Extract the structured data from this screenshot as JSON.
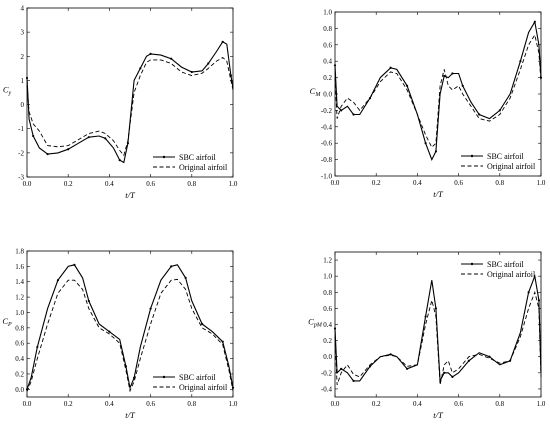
{
  "chart_data": [
    {
      "type": "line",
      "ylabel": "C_y",
      "ylabel_main": "C",
      "ylabel_sub": "y",
      "xlabel": "t/T",
      "xlim": [
        0,
        1
      ],
      "ylim": [
        -3,
        4
      ],
      "xticks": [
        0.0,
        0.2,
        0.4,
        0.6,
        0.8,
        1.0
      ],
      "yticks": [
        -3,
        -2,
        -1,
        0,
        1,
        2,
        3,
        4
      ],
      "tick_decimals_x": 1,
      "tick_decimals_y": 0,
      "legend_position": "bottom-right",
      "series": [
        {
          "name": "SBC airfoil",
          "style": "solid-marker",
          "x": [
            0,
            0.01,
            0.03,
            0.06,
            0.1,
            0.15,
            0.2,
            0.25,
            0.3,
            0.35,
            0.38,
            0.42,
            0.45,
            0.47,
            0.49,
            0.52,
            0.55,
            0.58,
            0.6,
            0.65,
            0.7,
            0.75,
            0.8,
            0.85,
            0.88,
            0.92,
            0.95,
            0.97,
            0.99,
            1.0
          ],
          "y": [
            1.1,
            -0.6,
            -1.3,
            -1.8,
            -2.05,
            -2.0,
            -1.85,
            -1.6,
            -1.35,
            -1.3,
            -1.4,
            -1.8,
            -2.3,
            -2.4,
            -1.6,
            1.0,
            1.5,
            2.0,
            2.1,
            2.05,
            1.9,
            1.55,
            1.35,
            1.4,
            1.7,
            2.2,
            2.6,
            2.5,
            1.2,
            0.7
          ]
        },
        {
          "name": "Original airfoil",
          "style": "dashed",
          "x": [
            0,
            0.01,
            0.03,
            0.06,
            0.1,
            0.15,
            0.2,
            0.25,
            0.3,
            0.35,
            0.38,
            0.42,
            0.45,
            0.47,
            0.49,
            0.52,
            0.55,
            0.58,
            0.6,
            0.65,
            0.7,
            0.75,
            0.8,
            0.85,
            0.88,
            0.92,
            0.95,
            0.97,
            0.99,
            1.0
          ],
          "y": [
            0.8,
            -0.3,
            -0.8,
            -1.1,
            -1.7,
            -1.75,
            -1.7,
            -1.45,
            -1.2,
            -1.1,
            -1.2,
            -1.5,
            -1.9,
            -2.1,
            -1.5,
            0.5,
            1.2,
            1.75,
            1.85,
            1.85,
            1.7,
            1.35,
            1.2,
            1.3,
            1.5,
            1.8,
            1.95,
            1.8,
            1.0,
            0.6
          ]
        }
      ]
    },
    {
      "type": "line",
      "ylabel": "C_M",
      "ylabel_main": "C",
      "ylabel_sub": "M",
      "xlabel": "t/T",
      "xlim": [
        0,
        1
      ],
      "ylim": [
        -1.0,
        1.0
      ],
      "xticks": [
        0.0,
        0.2,
        0.4,
        0.6,
        0.8,
        1.0
      ],
      "yticks": [
        -1.0,
        -0.8,
        -0.6,
        -0.4,
        -0.2,
        0.0,
        0.2,
        0.4,
        0.6,
        0.8,
        1.0
      ],
      "tick_decimals_x": 1,
      "tick_decimals_y": 1,
      "legend_position": "bottom-right",
      "series": [
        {
          "name": "SBC airfoil",
          "style": "solid-marker",
          "x": [
            0,
            0.01,
            0.03,
            0.06,
            0.09,
            0.12,
            0.17,
            0.22,
            0.27,
            0.3,
            0.35,
            0.4,
            0.44,
            0.47,
            0.49,
            0.51,
            0.53,
            0.55,
            0.57,
            0.6,
            0.62,
            0.66,
            0.7,
            0.75,
            0.8,
            0.85,
            0.9,
            0.94,
            0.97,
            0.99,
            1.0
          ],
          "y": [
            0.35,
            -0.15,
            -0.2,
            -0.15,
            -0.25,
            -0.25,
            -0.05,
            0.2,
            0.32,
            0.3,
            0.1,
            -0.25,
            -0.6,
            -0.8,
            -0.7,
            0.0,
            0.22,
            0.2,
            0.25,
            0.25,
            0.1,
            -0.1,
            -0.25,
            -0.3,
            -0.2,
            0.0,
            0.4,
            0.75,
            0.88,
            0.6,
            0.2
          ]
        },
        {
          "name": "Original airfoil",
          "style": "dashed",
          "x": [
            0,
            0.01,
            0.03,
            0.06,
            0.09,
            0.12,
            0.17,
            0.22,
            0.27,
            0.3,
            0.35,
            0.4,
            0.44,
            0.47,
            0.49,
            0.51,
            0.53,
            0.55,
            0.57,
            0.6,
            0.62,
            0.66,
            0.7,
            0.75,
            0.8,
            0.85,
            0.9,
            0.94,
            0.97,
            0.99,
            1.0
          ],
          "y": [
            0.2,
            -0.3,
            -0.15,
            -0.05,
            -0.1,
            -0.2,
            -0.05,
            0.15,
            0.27,
            0.25,
            0.05,
            -0.25,
            -0.5,
            -0.65,
            -0.6,
            0.1,
            0.3,
            0.1,
            0.05,
            0.1,
            0.0,
            -0.15,
            -0.3,
            -0.33,
            -0.25,
            -0.05,
            0.3,
            0.6,
            0.72,
            0.5,
            0.15
          ]
        }
      ]
    },
    {
      "type": "line",
      "ylabel": "C_P",
      "ylabel_main": "C",
      "ylabel_sub": "P",
      "xlabel": "t/T",
      "xlim": [
        0,
        1
      ],
      "ylim": [
        -0.1,
        1.8
      ],
      "xticks": [
        0.0,
        0.2,
        0.4,
        0.6,
        0.8,
        1.0
      ],
      "yticks": [
        0.0,
        0.2,
        0.4,
        0.6,
        0.8,
        1.0,
        1.2,
        1.4,
        1.6,
        1.8
      ],
      "tick_decimals_x": 1,
      "tick_decimals_y": 1,
      "legend_position": "bottom-right",
      "series": [
        {
          "name": "SBC airfoil",
          "style": "solid-marker",
          "x": [
            0,
            0.02,
            0.05,
            0.1,
            0.15,
            0.2,
            0.23,
            0.27,
            0.3,
            0.35,
            0.4,
            0.45,
            0.48,
            0.5,
            0.52,
            0.55,
            0.6,
            0.65,
            0.7,
            0.73,
            0.77,
            0.8,
            0.85,
            0.9,
            0.95,
            0.98,
            1.0
          ],
          "y": [
            0.0,
            0.15,
            0.55,
            1.05,
            1.42,
            1.6,
            1.62,
            1.45,
            1.15,
            0.85,
            0.75,
            0.65,
            0.3,
            0.02,
            0.15,
            0.55,
            1.05,
            1.42,
            1.6,
            1.62,
            1.45,
            1.15,
            0.85,
            0.75,
            0.62,
            0.3,
            0.02
          ]
        },
        {
          "name": "Original airfoil",
          "style": "dashed",
          "x": [
            0,
            0.02,
            0.05,
            0.1,
            0.15,
            0.2,
            0.23,
            0.27,
            0.3,
            0.35,
            0.4,
            0.45,
            0.48,
            0.5,
            0.52,
            0.55,
            0.6,
            0.65,
            0.7,
            0.73,
            0.77,
            0.8,
            0.85,
            0.9,
            0.95,
            0.98,
            1.0
          ],
          "y": [
            -0.03,
            0.1,
            0.4,
            0.85,
            1.25,
            1.42,
            1.42,
            1.3,
            1.05,
            0.8,
            0.72,
            0.6,
            0.25,
            -0.02,
            0.1,
            0.4,
            0.85,
            1.25,
            1.42,
            1.43,
            1.3,
            1.05,
            0.8,
            0.72,
            0.58,
            0.25,
            -0.02
          ]
        }
      ]
    },
    {
      "type": "line",
      "ylabel": "C_pM",
      "ylabel_main": "C",
      "ylabel_sub": "pM",
      "xlabel": "t/T",
      "xlim": [
        0,
        1
      ],
      "ylim": [
        -0.5,
        1.3
      ],
      "xticks": [
        0.0,
        0.2,
        0.4,
        0.6,
        0.8,
        1.0
      ],
      "yticks": [
        -0.4,
        -0.2,
        0.0,
        0.2,
        0.4,
        0.6,
        0.8,
        1.0,
        1.2
      ],
      "tick_decimals_x": 1,
      "tick_decimals_y": 1,
      "legend_position": "top-right",
      "series": [
        {
          "name": "SBC airfoil",
          "style": "solid-marker",
          "x": [
            0,
            0.01,
            0.03,
            0.06,
            0.09,
            0.12,
            0.17,
            0.22,
            0.27,
            0.3,
            0.35,
            0.4,
            0.44,
            0.47,
            0.49,
            0.51,
            0.53,
            0.55,
            0.57,
            0.6,
            0.65,
            0.7,
            0.75,
            0.8,
            0.85,
            0.9,
            0.94,
            0.97,
            0.99,
            1.0
          ],
          "y": [
            0.35,
            -0.2,
            -0.15,
            -0.2,
            -0.3,
            -0.3,
            -0.12,
            0.0,
            0.03,
            0.0,
            -0.15,
            -0.1,
            0.5,
            0.95,
            0.6,
            -0.3,
            -0.2,
            -0.2,
            -0.25,
            -0.2,
            -0.05,
            0.05,
            0.0,
            -0.1,
            -0.05,
            0.3,
            0.8,
            1.0,
            0.7,
            -0.2
          ]
        },
        {
          "name": "Original airfoil",
          "style": "dashed",
          "x": [
            0,
            0.01,
            0.03,
            0.06,
            0.09,
            0.12,
            0.17,
            0.22,
            0.27,
            0.3,
            0.35,
            0.4,
            0.44,
            0.47,
            0.49,
            0.51,
            0.53,
            0.55,
            0.57,
            0.6,
            0.65,
            0.7,
            0.75,
            0.8,
            0.85,
            0.9,
            0.94,
            0.97,
            0.99,
            1.0
          ],
          "y": [
            0.25,
            -0.35,
            -0.2,
            -0.1,
            -0.22,
            -0.25,
            -0.1,
            0.0,
            0.02,
            0.0,
            -0.12,
            -0.1,
            0.4,
            0.7,
            0.5,
            -0.35,
            -0.1,
            -0.05,
            -0.2,
            -0.15,
            0.0,
            0.03,
            -0.02,
            -0.08,
            -0.05,
            0.25,
            0.6,
            0.8,
            0.6,
            -0.25
          ]
        }
      ]
    }
  ]
}
